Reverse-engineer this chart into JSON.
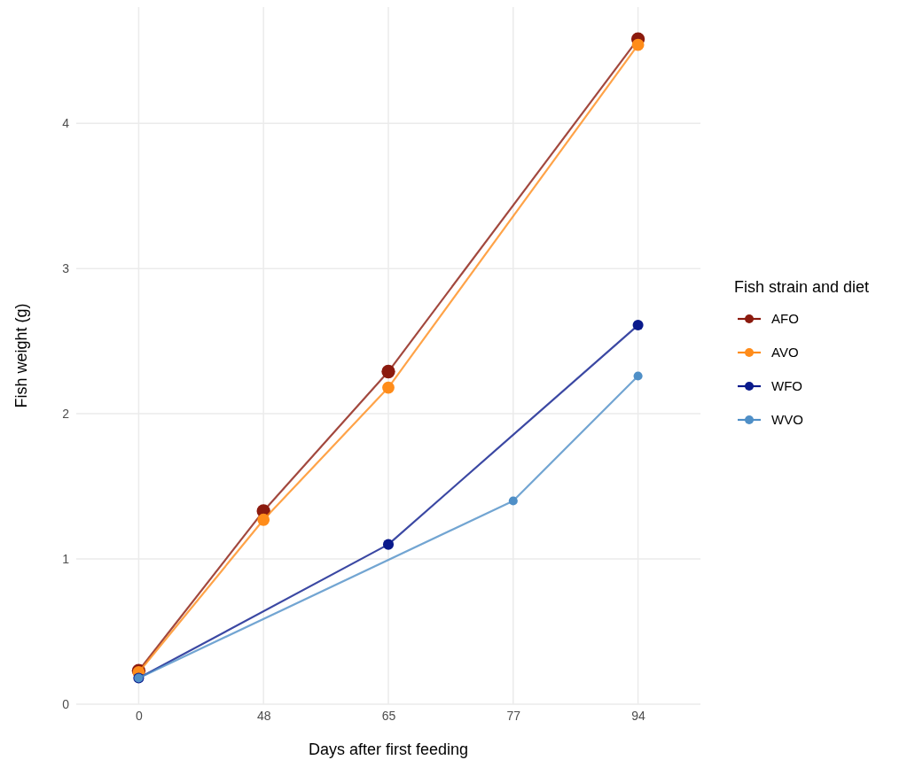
{
  "chart_data": {
    "type": "line",
    "xlabel": "Days after first feeding",
    "ylabel": "Fish weight (g)",
    "legend_title": "Fish strain and diet",
    "categories": [
      "0",
      "48",
      "65",
      "77",
      "94"
    ],
    "series": [
      {
        "name": "AFO",
        "color": "#8b1a0e",
        "x": [
          "0",
          "48",
          "65",
          "94"
        ],
        "values": [
          0.23,
          1.33,
          2.29,
          4.58
        ]
      },
      {
        "name": "AVO",
        "color": "#ff8c1a",
        "x": [
          "0",
          "48",
          "65",
          "94"
        ],
        "values": [
          0.22,
          1.27,
          2.18,
          4.54
        ]
      },
      {
        "name": "WFO",
        "color": "#0a1a8c",
        "x": [
          "0",
          "65",
          "94"
        ],
        "values": [
          0.18,
          1.1,
          2.61
        ]
      },
      {
        "name": "WVO",
        "color": "#4f8fc7",
        "x": [
          "0",
          "77",
          "94"
        ],
        "values": [
          0.18,
          1.4,
          2.26
        ]
      }
    ],
    "ylim": [
      0,
      4.8
    ],
    "yticks": [
      0,
      1,
      2,
      3,
      4
    ],
    "grid": true,
    "legend": "right",
    "marker": "circle",
    "line_style": "solid"
  }
}
